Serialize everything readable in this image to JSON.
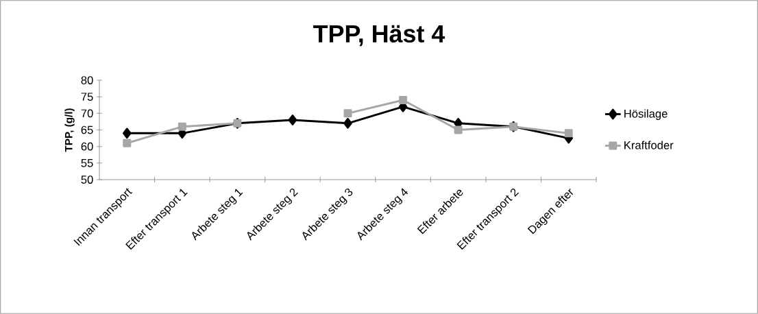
{
  "chart_data": {
    "type": "line",
    "title": "TPP, Häst 4",
    "ylabel": "TPP, (g/l)",
    "categories": [
      "Innan transport",
      "Efter transport 1",
      "Arbete steg 1",
      "Arbete steg 2",
      "Arbete steg 3",
      "Arbete steg 4",
      "Efter arbete",
      "Efter transport 2",
      "Dagen efter"
    ],
    "series": [
      {
        "name": "Hösilage",
        "color": "#000000",
        "marker": "diamond",
        "values": [
          64,
          64,
          67,
          68,
          67,
          72,
          67,
          66,
          62.5
        ]
      },
      {
        "name": "Kraftfoder",
        "color": "#a6a6a6",
        "marker": "square",
        "values": [
          61,
          66,
          67,
          null,
          70,
          74,
          65,
          66,
          64
        ]
      }
    ],
    "ylim": [
      50,
      80
    ],
    "yticks": [
      50,
      55,
      60,
      65,
      70,
      75,
      80
    ],
    "grid": false,
    "legend": "right",
    "line_style": "solid"
  }
}
